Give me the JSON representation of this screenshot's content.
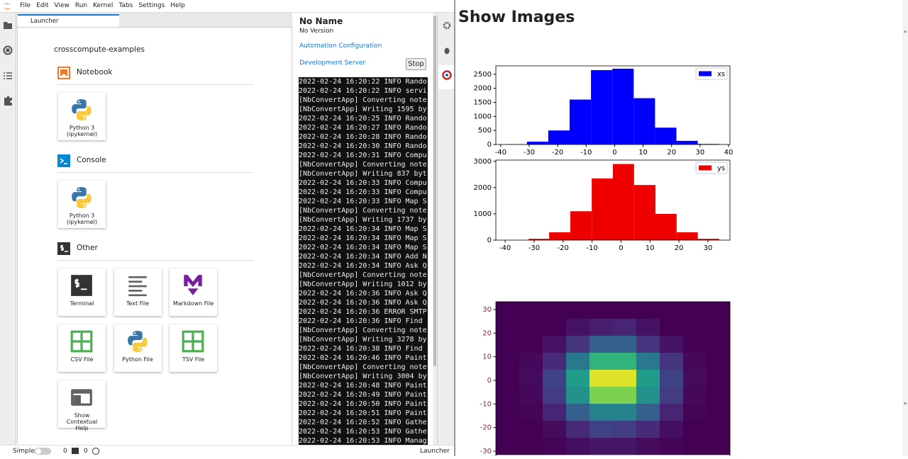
{
  "menu": [
    "File",
    "Edit",
    "View",
    "Run",
    "Kernel",
    "Tabs",
    "Settings",
    "Help"
  ],
  "launcher": {
    "tab": "Launcher",
    "folder": "crosscompute-examples",
    "sections": [
      {
        "title": "Notebook",
        "items": [
          {
            "label": "Python 3",
            "sublabel": "(ipykernel)"
          }
        ]
      },
      {
        "title": "Console",
        "items": [
          {
            "label": "Python 3",
            "sublabel": "(ipykernel)"
          }
        ]
      },
      {
        "title": "Other",
        "items": [
          {
            "label": "Terminal"
          },
          {
            "label": "Text File"
          },
          {
            "label": "Markdown File"
          },
          {
            "label": "CSV File"
          },
          {
            "label": "Python File"
          },
          {
            "label": "TSV File"
          },
          {
            "label": "Show Contextual Help"
          }
        ]
      }
    ]
  },
  "server": {
    "name": "No Name",
    "version": "No Version",
    "links": [
      "Automation Configuration",
      "Development Server"
    ],
    "button": "Stop",
    "log": [
      "2022-02-24 16:20:22 INFO Rando",
      "2022-02-24 16:20:22 INFO servi",
      "[NbConvertApp] Converting note",
      "[NbConvertApp] Writing 1595 by",
      "2022-02-24 16:20:25 INFO Rando",
      "2022-02-24 16:20:27 INFO Rando",
      "2022-02-24 16:20:28 INFO Rando",
      "2022-02-24 16:20:30 INFO Rando",
      "2022-02-24 16:20:31 INFO Compu",
      "[NbConvertApp] Converting note",
      "[NbConvertApp] Writing 837 byt",
      "2022-02-24 16:20:33 INFO Compu",
      "2022-02-24 16:20:33 INFO Compu",
      "2022-02-24 16:20:33 INFO Map S",
      "[NbConvertApp] Converting note",
      "[NbConvertApp] Writing 1737 by",
      "2022-02-24 16:20:34 INFO Map S",
      "2022-02-24 16:20:34 INFO Map S",
      "2022-02-24 16:20:34 INFO Map S",
      "2022-02-24 16:20:34 INFO Add N",
      "2022-02-24 16:20:34 INFO Ask Q",
      "[NbConvertApp] Converting note",
      "[NbConvertApp] Writing 1012 by",
      "2022-02-24 16:20:36 INFO Ask Q",
      "2022-02-24 16:20:36 INFO Ask Q",
      "2022-02-24 16:20:36 ERROR SMTP",
      "2022-02-24 16:20:36 INFO Find",
      "[NbConvertApp] Converting note",
      "[NbConvertApp] Writing 3278 by",
      "2022-02-24 16:20:38 INFO Find",
      "2022-02-24 16:20:46 INFO Paint",
      "[NbConvertApp] Converting note",
      "[NbConvertApp] Writing 3004 by",
      "2022-02-24 16:20:48 INFO Paint",
      "2022-02-24 16:20:49 INFO Paint",
      "2022-02-24 16:20:50 INFO Paint",
      "2022-02-24 16:20:51 INFO Paint",
      "2022-02-24 16:20:52 INFO Gathe",
      "2022-02-24 16:20:53 INFO Gathe",
      "2022-02-24 16:20:53 INFO Manag"
    ]
  },
  "status": {
    "mode": "Simple",
    "kernels": 0,
    "terminals": 0,
    "active": "Launcher"
  },
  "output": {
    "title": "Show Images",
    "chart_data": [
      {
        "type": "histogram",
        "bins": [
          -38.3,
          -30.8,
          -23.3,
          -15.8,
          -8.3,
          -0.8,
          6.7,
          14.2,
          21.7,
          29.2,
          36.7
        ],
        "series": [
          {
            "name": "xs",
            "color": "#0000ff",
            "values": [
              10,
              100,
              500,
              1600,
              2650,
              2700,
              1650,
              600,
              130,
              20
            ]
          }
        ],
        "xlim": [
          -41.7,
          40.5
        ],
        "xticks": [
          -40,
          -30,
          -20,
          -10,
          0,
          10,
          20,
          30,
          40
        ],
        "ylim": [
          0,
          2800
        ],
        "yticks": [
          0,
          500,
          1000,
          1500,
          2000,
          2500
        ],
        "legend": "upper right"
      },
      {
        "type": "histogram",
        "bins": [
          -31.9,
          -24.8,
          -17.5,
          -10.1,
          -2.8,
          4.5,
          11.9,
          19.2,
          26.5,
          33.9
        ],
        "series": [
          {
            "name": "ys",
            "color": "#ee0000",
            "values": [
              50,
              300,
              1100,
              2350,
              2900,
              2100,
              1000,
              300,
              50
            ]
          }
        ],
        "xlim": [
          -43.2,
          37.6
        ],
        "xticks": [
          -40,
          -30,
          -20,
          -10,
          0,
          10,
          20,
          30
        ],
        "ylim": [
          0,
          3050
        ],
        "yticks": [
          0,
          1000,
          2000,
          3000
        ],
        "legend": "upper right"
      },
      {
        "type": "heatmap",
        "colormap": "viridis",
        "zlim": [
          0,
          100
        ],
        "ylim": [
          -31.5,
          33.3
        ],
        "yticks": [
          30,
          20,
          10,
          0,
          -10,
          -20,
          -30
        ],
        "values": [
          [
            0,
            0,
            0,
            0,
            0,
            0,
            0,
            0,
            0,
            0
          ],
          [
            0,
            0,
            0,
            5,
            8,
            10,
            5,
            0,
            0,
            0
          ],
          [
            0,
            0,
            5,
            15,
            30,
            30,
            15,
            5,
            0,
            0
          ],
          [
            0,
            2,
            12,
            40,
            65,
            65,
            40,
            15,
            2,
            0
          ],
          [
            0,
            3,
            20,
            55,
            95,
            95,
            55,
            20,
            3,
            0
          ],
          [
            0,
            2,
            18,
            50,
            80,
            80,
            50,
            18,
            2,
            0
          ],
          [
            0,
            1,
            10,
            30,
            45,
            45,
            30,
            10,
            1,
            0
          ],
          [
            0,
            0,
            3,
            12,
            20,
            18,
            12,
            4,
            0,
            0
          ],
          [
            0,
            0,
            1,
            4,
            6,
            6,
            3,
            1,
            0,
            0
          ]
        ]
      }
    ]
  }
}
